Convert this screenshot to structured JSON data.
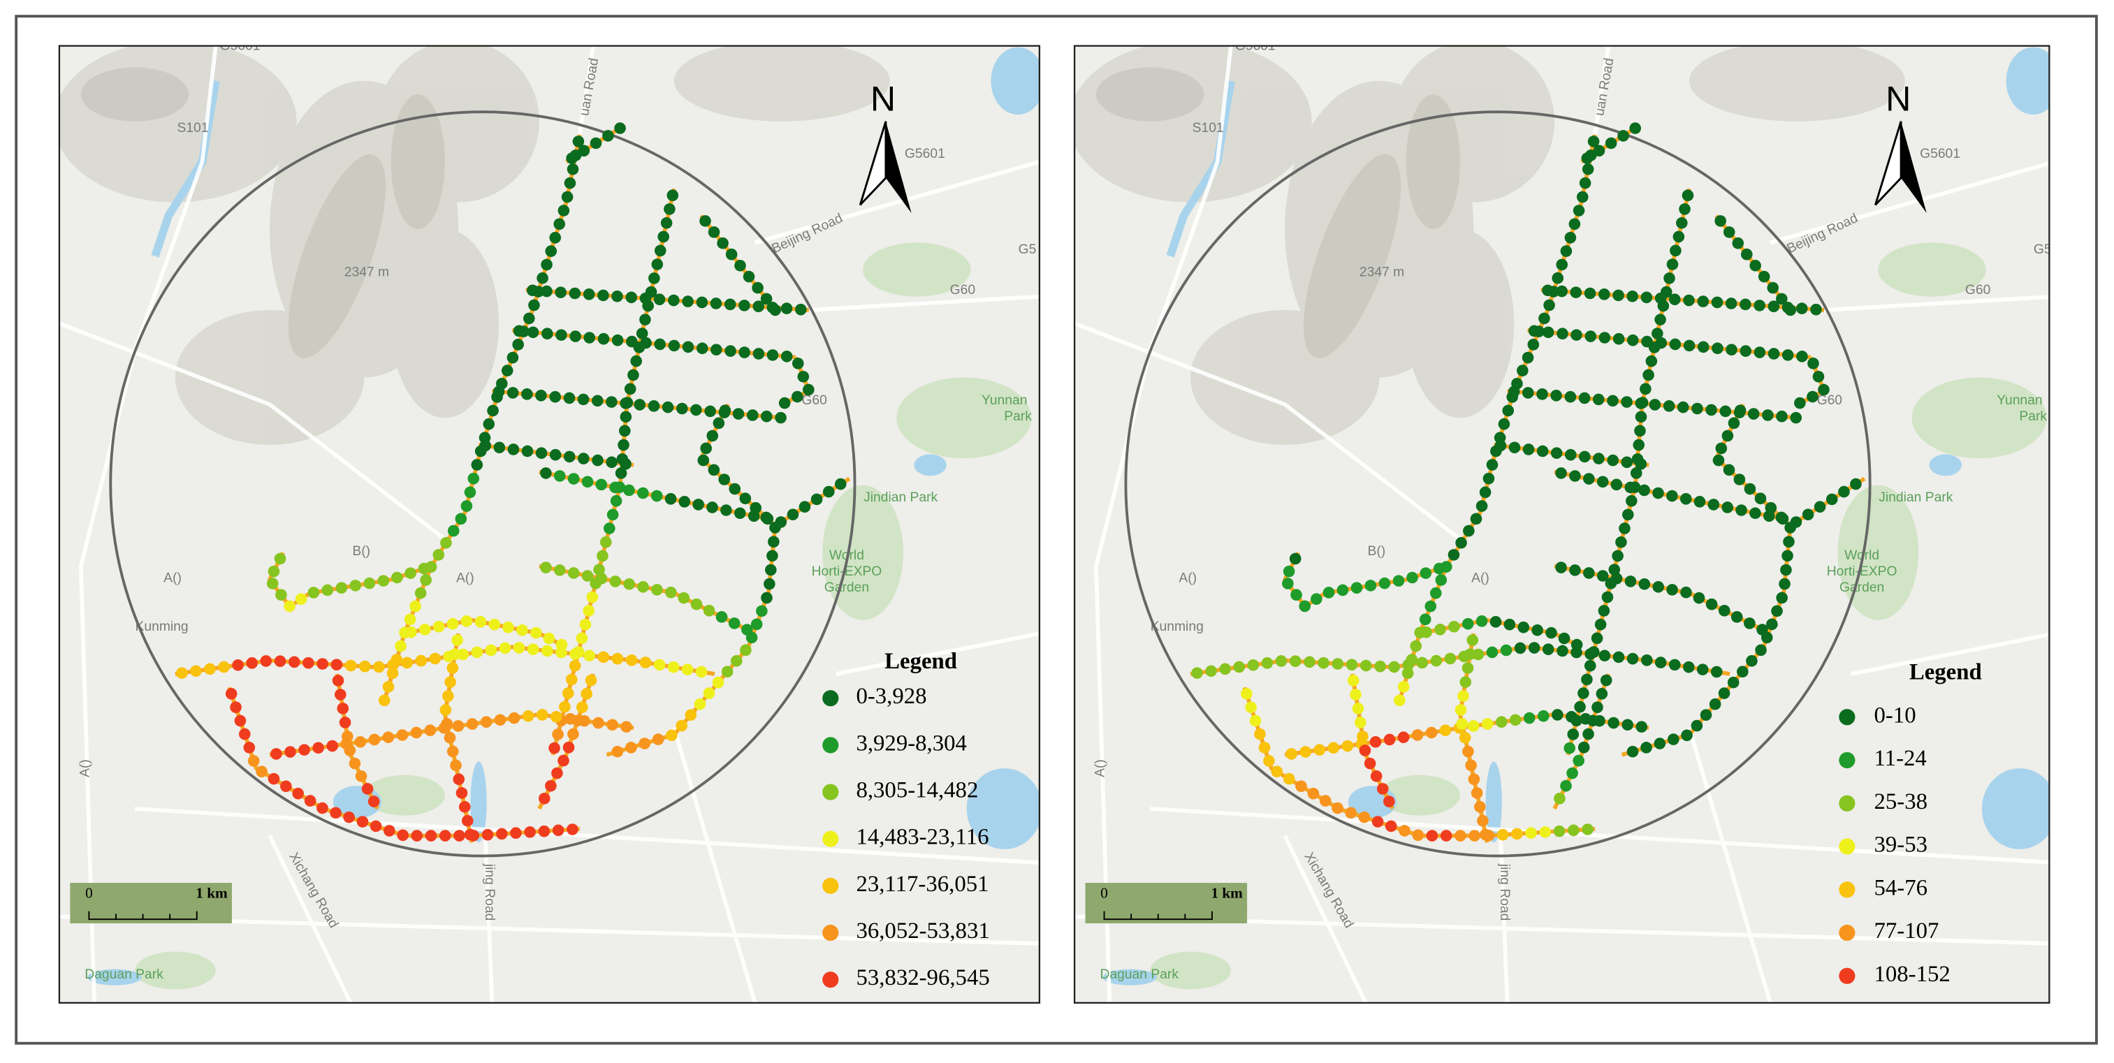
{
  "panels": [
    {
      "legend": {
        "title": "Legend",
        "items": [
          {
            "label": "0-3,928",
            "color": "#0b6b1e"
          },
          {
            "label": "3,929-8,304",
            "color": "#1e9b2a"
          },
          {
            "label": "8,305-14,482",
            "color": "#86c41f"
          },
          {
            "label": "14,483-23,116",
            "color": "#eef01c"
          },
          {
            "label": "23,117-36,051",
            "color": "#f9c20c"
          },
          {
            "label": "36,052-53,831",
            "color": "#f7941d"
          },
          {
            "label": "53,832-96,545",
            "color": "#f03c1e"
          }
        ]
      },
      "north": "N",
      "scale": {
        "start": "0",
        "end": "1 km"
      },
      "map_labels": [
        "G5601",
        "S101",
        "G5601",
        "G5",
        "G60",
        "2347 m",
        "A()",
        "B()",
        "A()",
        "Kunming",
        "Daguan Park",
        "Jindian Park",
        "World",
        "Horti-EXPO",
        "Garden",
        "Yunnan",
        "Park",
        "Beijing Road",
        "Xichang Road",
        "jing Road",
        "G60",
        "uan Road",
        "A()"
      ]
    },
    {
      "legend": {
        "title": "Legend",
        "items": [
          {
            "label": "0-10",
            "color": "#0b6b1e"
          },
          {
            "label": "11-24",
            "color": "#1e9b2a"
          },
          {
            "label": "25-38",
            "color": "#86c41f"
          },
          {
            "label": "39-53",
            "color": "#eef01c"
          },
          {
            "label": "54-76",
            "color": "#f9c20c"
          },
          {
            "label": "77-107",
            "color": "#f7941d"
          },
          {
            "label": "108-152",
            "color": "#f03c1e"
          }
        ]
      },
      "north": "N",
      "scale": {
        "start": "0",
        "end": "1 km"
      },
      "map_labels": [
        "G5601",
        "S101",
        "G5601",
        "G5",
        "G60",
        "2347 m",
        "A()",
        "B()",
        "A()",
        "Kunming",
        "Daguan Park",
        "Jindian Park",
        "World",
        "Horti-EXPO",
        "Garden",
        "Yunnan",
        "Park",
        "Beijing Road",
        "Xichang Road",
        "jing Road",
        "G60",
        "uan Road",
        "A()"
      ]
    }
  ]
}
